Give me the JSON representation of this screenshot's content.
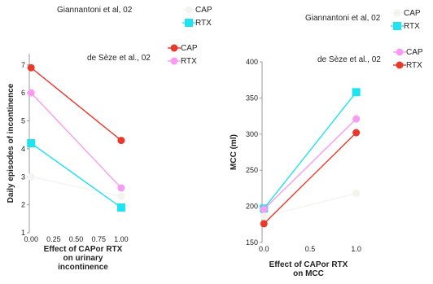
{
  "chart_data": [
    {
      "type": "line",
      "xlabel": [
        "Effect of CAPor RTX",
        "on urinary",
        "incontinence"
      ],
      "ylabel": "Daily episodes of incontinence",
      "x": [
        0,
        1
      ],
      "xticks": [
        "0.00",
        "0.25",
        "0.50",
        "0.75",
        "1.00"
      ],
      "xtick_values": [
        0,
        0.25,
        0.5,
        0.75,
        1
      ],
      "yticks": [
        "1",
        "2",
        "3",
        "4",
        "5",
        "6",
        "7"
      ],
      "ytick_values": [
        1,
        2,
        3,
        4,
        5,
        6,
        7
      ],
      "xlim": [
        -0.02,
        1.1
      ],
      "ylim": [
        1,
        7.4
      ],
      "legend_groups": [
        {
          "title": "Giannantoni et al, 02",
          "entries": [
            "CAP",
            "RTX"
          ]
        },
        {
          "title": "de Sèze et al., 02",
          "entries": [
            "CAP",
            "RTX"
          ]
        }
      ],
      "series": [
        {
          "name": "CAP",
          "study": "Giannantoni et al, 02",
          "values": [
            3.0,
            2.3
          ],
          "color": "#f4f4ee",
          "marker": "circle"
        },
        {
          "name": "RTX",
          "study": "Giannantoni et al, 02",
          "values": [
            4.2,
            1.9
          ],
          "color": "#1ee3f0",
          "marker": "square"
        },
        {
          "name": "CAP",
          "study": "de Sèze et al., 02",
          "values": [
            6.9,
            4.3
          ],
          "color": "#e8392b",
          "marker": "circle"
        },
        {
          "name": "RTX",
          "study": "de Sèze et al., 02",
          "values": [
            6.0,
            2.6
          ],
          "color": "#f79cf2",
          "marker": "circle"
        }
      ]
    },
    {
      "type": "line",
      "xlabel": [
        "Effect of CAPor RTX",
        "on MCC"
      ],
      "ylabel": "MCC (ml)",
      "x": [
        0,
        1
      ],
      "xticks": [
        "0.0",
        "0.5",
        "1.0"
      ],
      "xtick_values": [
        0,
        0.5,
        1
      ],
      "yticks": [
        "150",
        "200",
        "250",
        "300",
        "350",
        "400"
      ],
      "ytick_values": [
        150,
        200,
        250,
        300,
        350,
        400
      ],
      "xlim": [
        -0.02,
        1.1
      ],
      "ylim": [
        150,
        400
      ],
      "legend_groups": [
        {
          "title": "Giannantoni et al, 02",
          "entries": [
            "CAP",
            "RTX"
          ]
        },
        {
          "title": "de Sèze et al., 02",
          "entries": [
            "CAP",
            "RTX"
          ]
        }
      ],
      "series": [
        {
          "name": "CAP",
          "study": "Giannantoni et al, 02",
          "values": [
            186,
            218
          ],
          "color": "#f4f4ee",
          "marker": "circle"
        },
        {
          "name": "RTX",
          "study": "Giannantoni et al, 02",
          "values": [
            197,
            358
          ],
          "color": "#1ee3f0",
          "marker": "square"
        },
        {
          "name": "CAP",
          "study": "de Sèze et al., 02",
          "values": [
            196,
            321
          ],
          "color": "#f79cf2",
          "marker": "circle"
        },
        {
          "name": "RTX",
          "study": "de Sèze et al., 02",
          "values": [
            176,
            302
          ],
          "color": "#e8392b",
          "marker": "circle"
        }
      ]
    }
  ]
}
